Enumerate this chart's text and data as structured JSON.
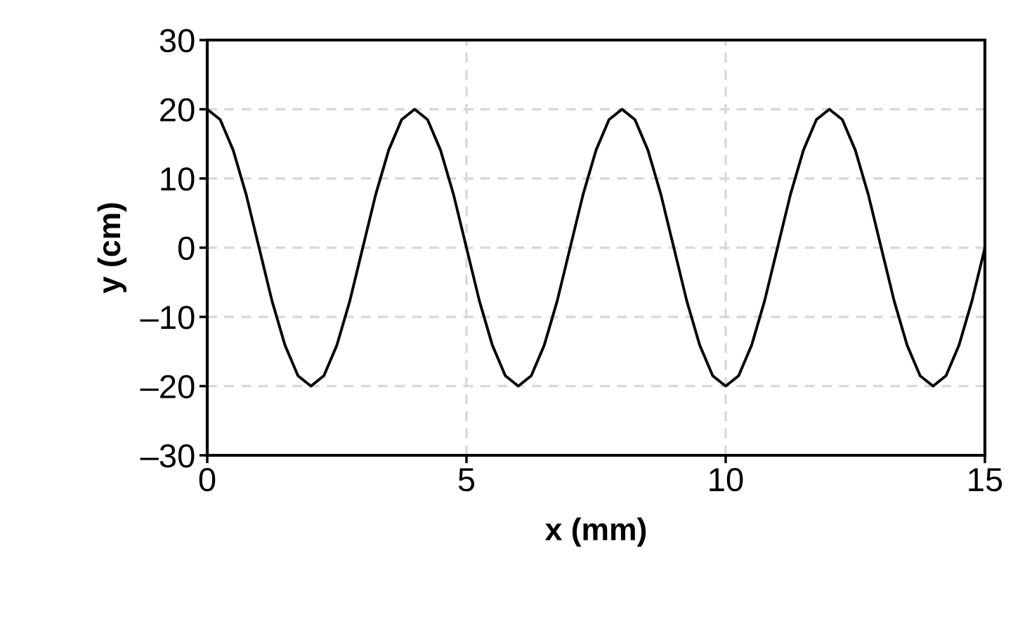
{
  "chart_data": {
    "type": "line",
    "xlabel": "x (mm)",
    "ylabel": "y (cm)",
    "x": [
      0,
      0.25,
      0.5,
      0.75,
      1,
      1.25,
      1.5,
      1.75,
      2,
      2.25,
      2.5,
      2.75,
      3,
      3.25,
      3.5,
      3.75,
      4,
      4.25,
      4.5,
      4.75,
      5,
      5.25,
      5.5,
      5.75,
      6,
      6.25,
      6.5,
      6.75,
      7,
      7.25,
      7.5,
      7.75,
      8,
      8.25,
      8.5,
      8.75,
      9,
      9.25,
      9.5,
      9.75,
      10,
      10.25,
      10.5,
      10.75,
      11,
      11.25,
      11.5,
      11.75,
      12,
      12.25,
      12.5,
      12.75,
      13,
      13.25,
      13.5,
      13.75,
      14,
      14.25,
      14.5,
      14.75,
      15
    ],
    "series": [
      {
        "color": "#000000",
        "values": [
          20,
          18.5,
          14.1,
          7.7,
          0,
          -7.7,
          -14.1,
          -18.5,
          -20,
          -18.5,
          -14.1,
          -7.7,
          0,
          7.7,
          14.1,
          18.5,
          20,
          18.5,
          14.1,
          7.7,
          0,
          -7.7,
          -14.1,
          -18.5,
          -20,
          -18.5,
          -14.1,
          -7.7,
          0,
          7.7,
          14.1,
          18.5,
          20,
          18.5,
          14.1,
          7.7,
          0,
          -7.7,
          -14.1,
          -18.5,
          -20,
          -18.5,
          -14.1,
          -7.7,
          0,
          7.7,
          14.1,
          18.5,
          20,
          18.5,
          14.1,
          7.7,
          0,
          -7.7,
          -14.1,
          -18.5,
          -20,
          -18.5,
          -14.1,
          -7.7,
          0
        ]
      }
    ],
    "xlim": [
      0,
      15
    ],
    "xticks": [
      0,
      5,
      10,
      15
    ],
    "ylim": [
      -30,
      30
    ],
    "yticks": [
      {
        "value": -30,
        "label": "–30"
      },
      {
        "value": -20,
        "label": "–20"
      },
      {
        "value": -10,
        "label": "–10"
      },
      0,
      10,
      20,
      30
    ],
    "grid": true,
    "marker": "none",
    "line_style": "solid",
    "legend": false
  }
}
